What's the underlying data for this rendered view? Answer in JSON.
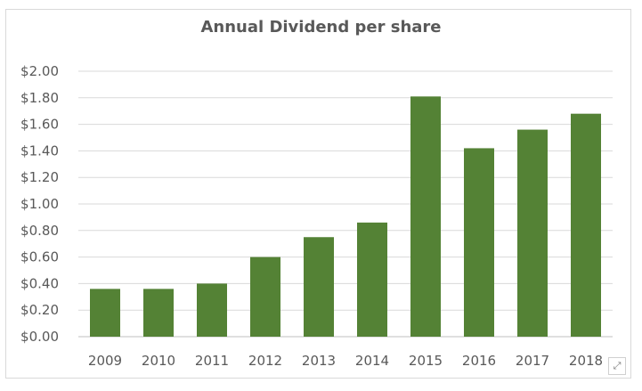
{
  "chart_data": {
    "type": "bar",
    "title": "Annual Dividend per share",
    "categories": [
      "2009",
      "2010",
      "2011",
      "2012",
      "2013",
      "2014",
      "2015",
      "2016",
      "2017",
      "2018"
    ],
    "values": [
      0.36,
      0.36,
      0.4,
      0.6,
      0.75,
      0.86,
      1.81,
      1.42,
      1.56,
      1.68
    ],
    "ylim": [
      0,
      2.0
    ],
    "yticks": [
      "$0.00",
      "$0.20",
      "$0.40",
      "$0.60",
      "$0.80",
      "$1.00",
      "$1.20",
      "$1.40",
      "$1.60",
      "$1.80",
      "$2.00"
    ],
    "xlabel": "",
    "ylabel": "",
    "grid": true,
    "bar_color": "#548235",
    "grid_color": "#d9d9d9"
  },
  "ui": {
    "expand_icon": "expand-icon"
  }
}
